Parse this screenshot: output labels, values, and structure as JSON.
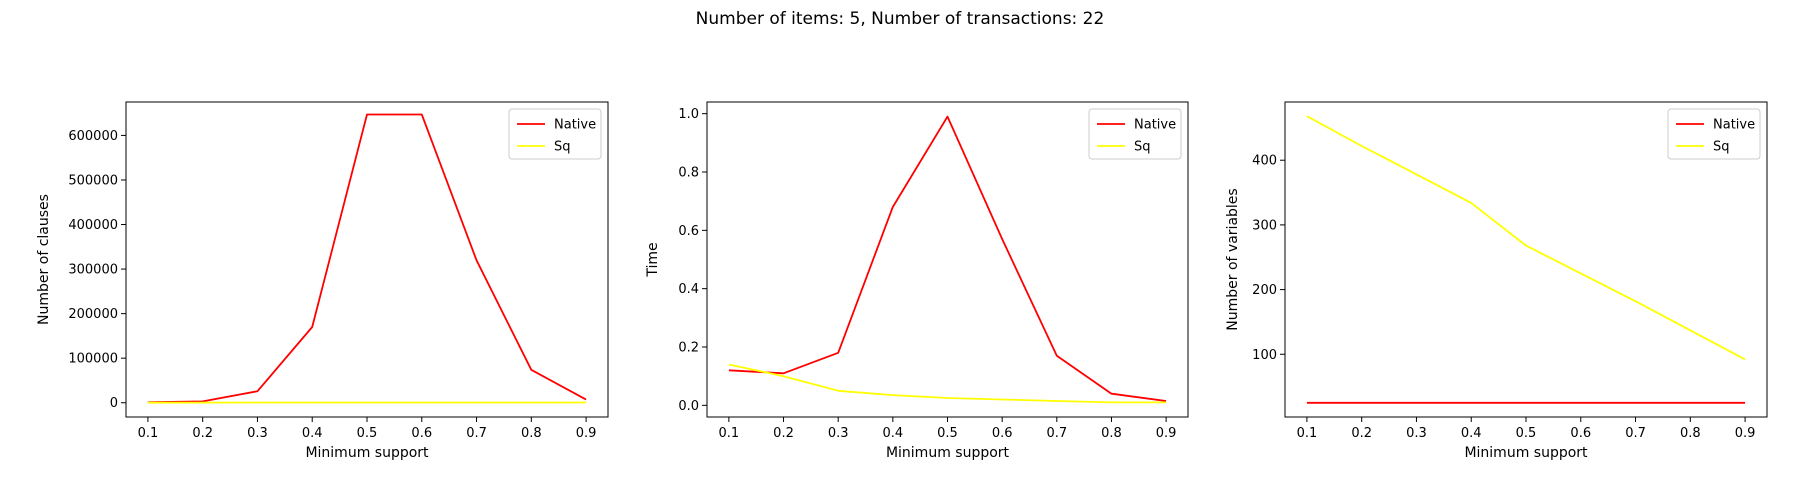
{
  "figure": {
    "title": "Number of items: 5, Number of transactions: 22"
  },
  "chart_data": [
    {
      "type": "line",
      "xlabel": "Minimum support",
      "ylabel": "Number of clauses",
      "x": [
        0.1,
        0.2,
        0.3,
        0.4,
        0.5,
        0.6,
        0.7,
        0.8,
        0.9
      ],
      "xticks": [
        0.1,
        0.2,
        0.3,
        0.4,
        0.5,
        0.6,
        0.7,
        0.8,
        0.9
      ],
      "xtick_labels": [
        "0.1",
        "0.2",
        "0.3",
        "0.4",
        "0.5",
        "0.6",
        "0.7",
        "0.8",
        "0.9"
      ],
      "xlim": [
        0.06,
        0.94
      ],
      "yticks": [
        0,
        100000,
        200000,
        300000,
        400000,
        500000,
        600000
      ],
      "ytick_labels": [
        "0",
        "100000",
        "200000",
        "300000",
        "400000",
        "500000",
        "600000"
      ],
      "ylim": [
        -32000,
        675000
      ],
      "legend": "top-right",
      "grid": false,
      "series": [
        {
          "name": "Native",
          "color": "#ff0000",
          "values": [
            1000,
            3000,
            26000,
            170000,
            647000,
            647000,
            320000,
            74000,
            7000
          ]
        },
        {
          "name": "Sq",
          "color": "#ffff00",
          "values": [
            200,
            400,
            600,
            600,
            600,
            600,
            600,
            600,
            600
          ]
        }
      ]
    },
    {
      "type": "line",
      "xlabel": "Minimum support",
      "ylabel": "Time",
      "x": [
        0.1,
        0.2,
        0.3,
        0.4,
        0.5,
        0.6,
        0.7,
        0.8,
        0.9
      ],
      "xticks": [
        0.1,
        0.2,
        0.3,
        0.4,
        0.5,
        0.6,
        0.7,
        0.8,
        0.9
      ],
      "xtick_labels": [
        "0.1",
        "0.2",
        "0.3",
        "0.4",
        "0.5",
        "0.6",
        "0.7",
        "0.8",
        "0.9"
      ],
      "xlim": [
        0.06,
        0.94
      ],
      "yticks": [
        0.0,
        0.2,
        0.4,
        0.6,
        0.8,
        1.0
      ],
      "ytick_labels": [
        "0.0",
        "0.2",
        "0.4",
        "0.6",
        "0.8",
        "1.0"
      ],
      "ylim": [
        -0.04,
        1.04
      ],
      "legend": "top-right",
      "grid": false,
      "series": [
        {
          "name": "Native",
          "color": "#ff0000",
          "values": [
            0.12,
            0.11,
            0.18,
            0.68,
            0.99,
            0.57,
            0.17,
            0.04,
            0.015
          ]
        },
        {
          "name": "Sq",
          "color": "#ffff00",
          "values": [
            0.14,
            0.1,
            0.05,
            0.035,
            0.025,
            0.02,
            0.015,
            0.01,
            0.01
          ]
        }
      ]
    },
    {
      "type": "line",
      "xlabel": "Minimum support",
      "ylabel": "Number of variables",
      "x": [
        0.1,
        0.2,
        0.3,
        0.4,
        0.5,
        0.6,
        0.7,
        0.8,
        0.9
      ],
      "xticks": [
        0.1,
        0.2,
        0.3,
        0.4,
        0.5,
        0.6,
        0.7,
        0.8,
        0.9
      ],
      "xtick_labels": [
        "0.1",
        "0.2",
        "0.3",
        "0.4",
        "0.5",
        "0.6",
        "0.7",
        "0.8",
        "0.9"
      ],
      "xlim": [
        0.06,
        0.94
      ],
      "yticks": [
        100,
        200,
        300,
        400
      ],
      "ytick_labels": [
        "100",
        "200",
        "300",
        "400"
      ],
      "ylim": [
        3,
        490
      ],
      "legend": "top-right",
      "grid": false,
      "series": [
        {
          "name": "Native",
          "color": "#ff0000",
          "values": [
            25,
            25,
            25,
            25,
            25,
            25,
            25,
            25,
            25
          ]
        },
        {
          "name": "Sq",
          "color": "#ffff00",
          "values": [
            468,
            422,
            378,
            334,
            268,
            225,
            182,
            137,
            92
          ]
        }
      ]
    }
  ]
}
